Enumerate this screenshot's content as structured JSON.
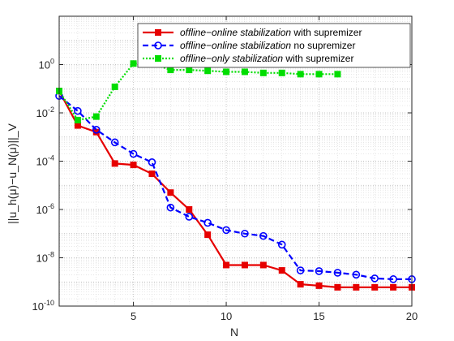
{
  "chart_data": {
    "type": "line",
    "title": "",
    "xlabel": "N",
    "ylabel": "||u_h(μ)−u_N(μ)||_V",
    "xlim": [
      1,
      20
    ],
    "ylim_exponents": [
      -10,
      2
    ],
    "yscale": "log",
    "grid": true,
    "minor_grid": true,
    "legend_position": "top-right",
    "x_ticks": [
      5,
      10,
      15,
      20
    ],
    "y_ticks": [
      {
        "base": "10",
        "exp": "-10",
        "exponent": -10
      },
      {
        "base": "10",
        "exp": "-8",
        "exponent": -8
      },
      {
        "base": "10",
        "exp": "-6",
        "exponent": -6
      },
      {
        "base": "10",
        "exp": "-4",
        "exponent": -4
      },
      {
        "base": "10",
        "exp": "-2",
        "exponent": -2
      },
      {
        "base": "10",
        "exp": "0",
        "exponent": 0
      }
    ],
    "series": [
      {
        "name_italic": "offline−online stabilization",
        "name_rest": " with supremizer",
        "color": "#e60000",
        "dash": "solid",
        "marker": "square",
        "x": [
          1,
          2,
          3,
          4,
          5,
          6,
          7,
          8,
          9,
          10,
          11,
          12,
          13,
          14,
          15,
          16,
          17,
          18,
          19,
          20
        ],
        "y": [
          0.08,
          0.003,
          0.0016,
          8e-05,
          7e-05,
          3e-05,
          5e-06,
          1e-06,
          9e-08,
          5e-09,
          5e-09,
          5e-09,
          3e-09,
          8e-10,
          7e-10,
          6e-10,
          6e-10,
          6e-10,
          6e-10,
          6e-10
        ]
      },
      {
        "name_italic": "offline−online stabilization",
        "name_rest": " no supremizer",
        "color": "#0000ff",
        "dash": "dashed",
        "marker": "circle",
        "x": [
          1,
          2,
          3,
          4,
          5,
          6,
          7,
          8,
          9,
          10,
          11,
          12,
          13,
          14,
          15,
          16,
          17,
          18,
          19,
          20
        ],
        "y": [
          0.05,
          0.012,
          0.002,
          0.0006,
          0.0002,
          9e-05,
          1.2e-06,
          5e-07,
          2.8e-07,
          1.4e-07,
          1e-07,
          8e-08,
          3.5e-08,
          3e-09,
          2.8e-09,
          2.4e-09,
          2e-09,
          1.4e-09,
          1.3e-09,
          1.3e-09
        ]
      },
      {
        "name_italic": "offline−only stabilization",
        "name_rest": " with supremizer",
        "color": "#00dd00",
        "dash": "dotted",
        "marker": "square",
        "x": [
          1,
          2,
          3,
          4,
          5,
          6,
          7,
          8,
          9,
          10,
          11,
          12,
          13,
          14,
          15,
          16
        ],
        "y": [
          0.08,
          0.005,
          0.007,
          0.12,
          1.1,
          1.1,
          0.6,
          0.6,
          0.55,
          0.5,
          0.5,
          0.45,
          0.45,
          0.4,
          0.4,
          0.4
        ]
      }
    ]
  }
}
